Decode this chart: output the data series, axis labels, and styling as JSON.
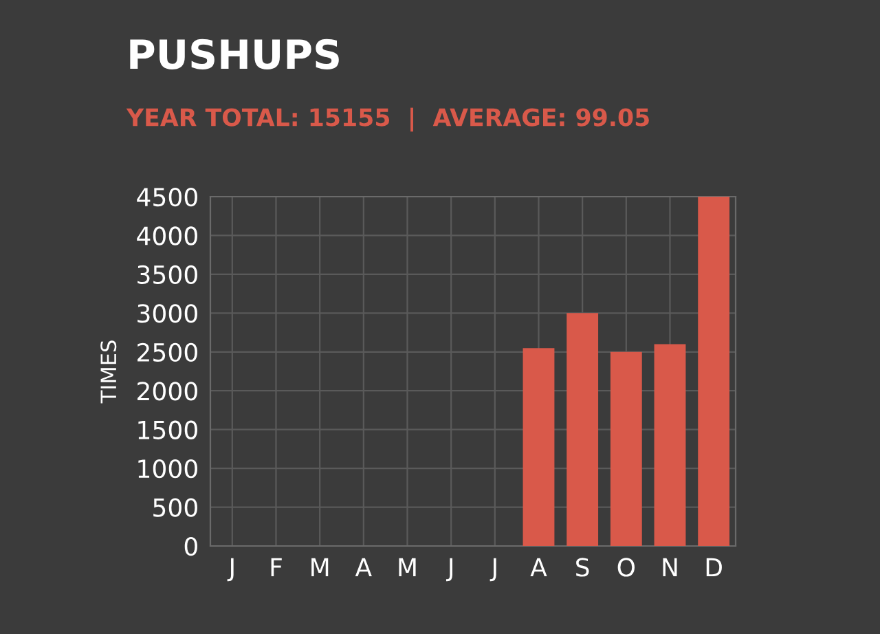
{
  "chart_data": {
    "type": "bar",
    "title": "PUSHUPS",
    "subtitle": "YEAR TOTAL: 15155  |  AVERAGE: 99.05",
    "ylabel": "TIMES",
    "categories": [
      "J",
      "F",
      "M",
      "A",
      "M",
      "J",
      "J",
      "A",
      "S",
      "O",
      "N",
      "D"
    ],
    "values": [
      null,
      null,
      null,
      null,
      null,
      null,
      null,
      2550,
      3000,
      2500,
      2600,
      4500
    ],
    "color": "#d9594a",
    "ylim": [
      0,
      4500
    ],
    "yticks": [
      0,
      500,
      1000,
      1500,
      2000,
      2500,
      3000,
      3500,
      4000,
      4500
    ],
    "grid": true
  }
}
